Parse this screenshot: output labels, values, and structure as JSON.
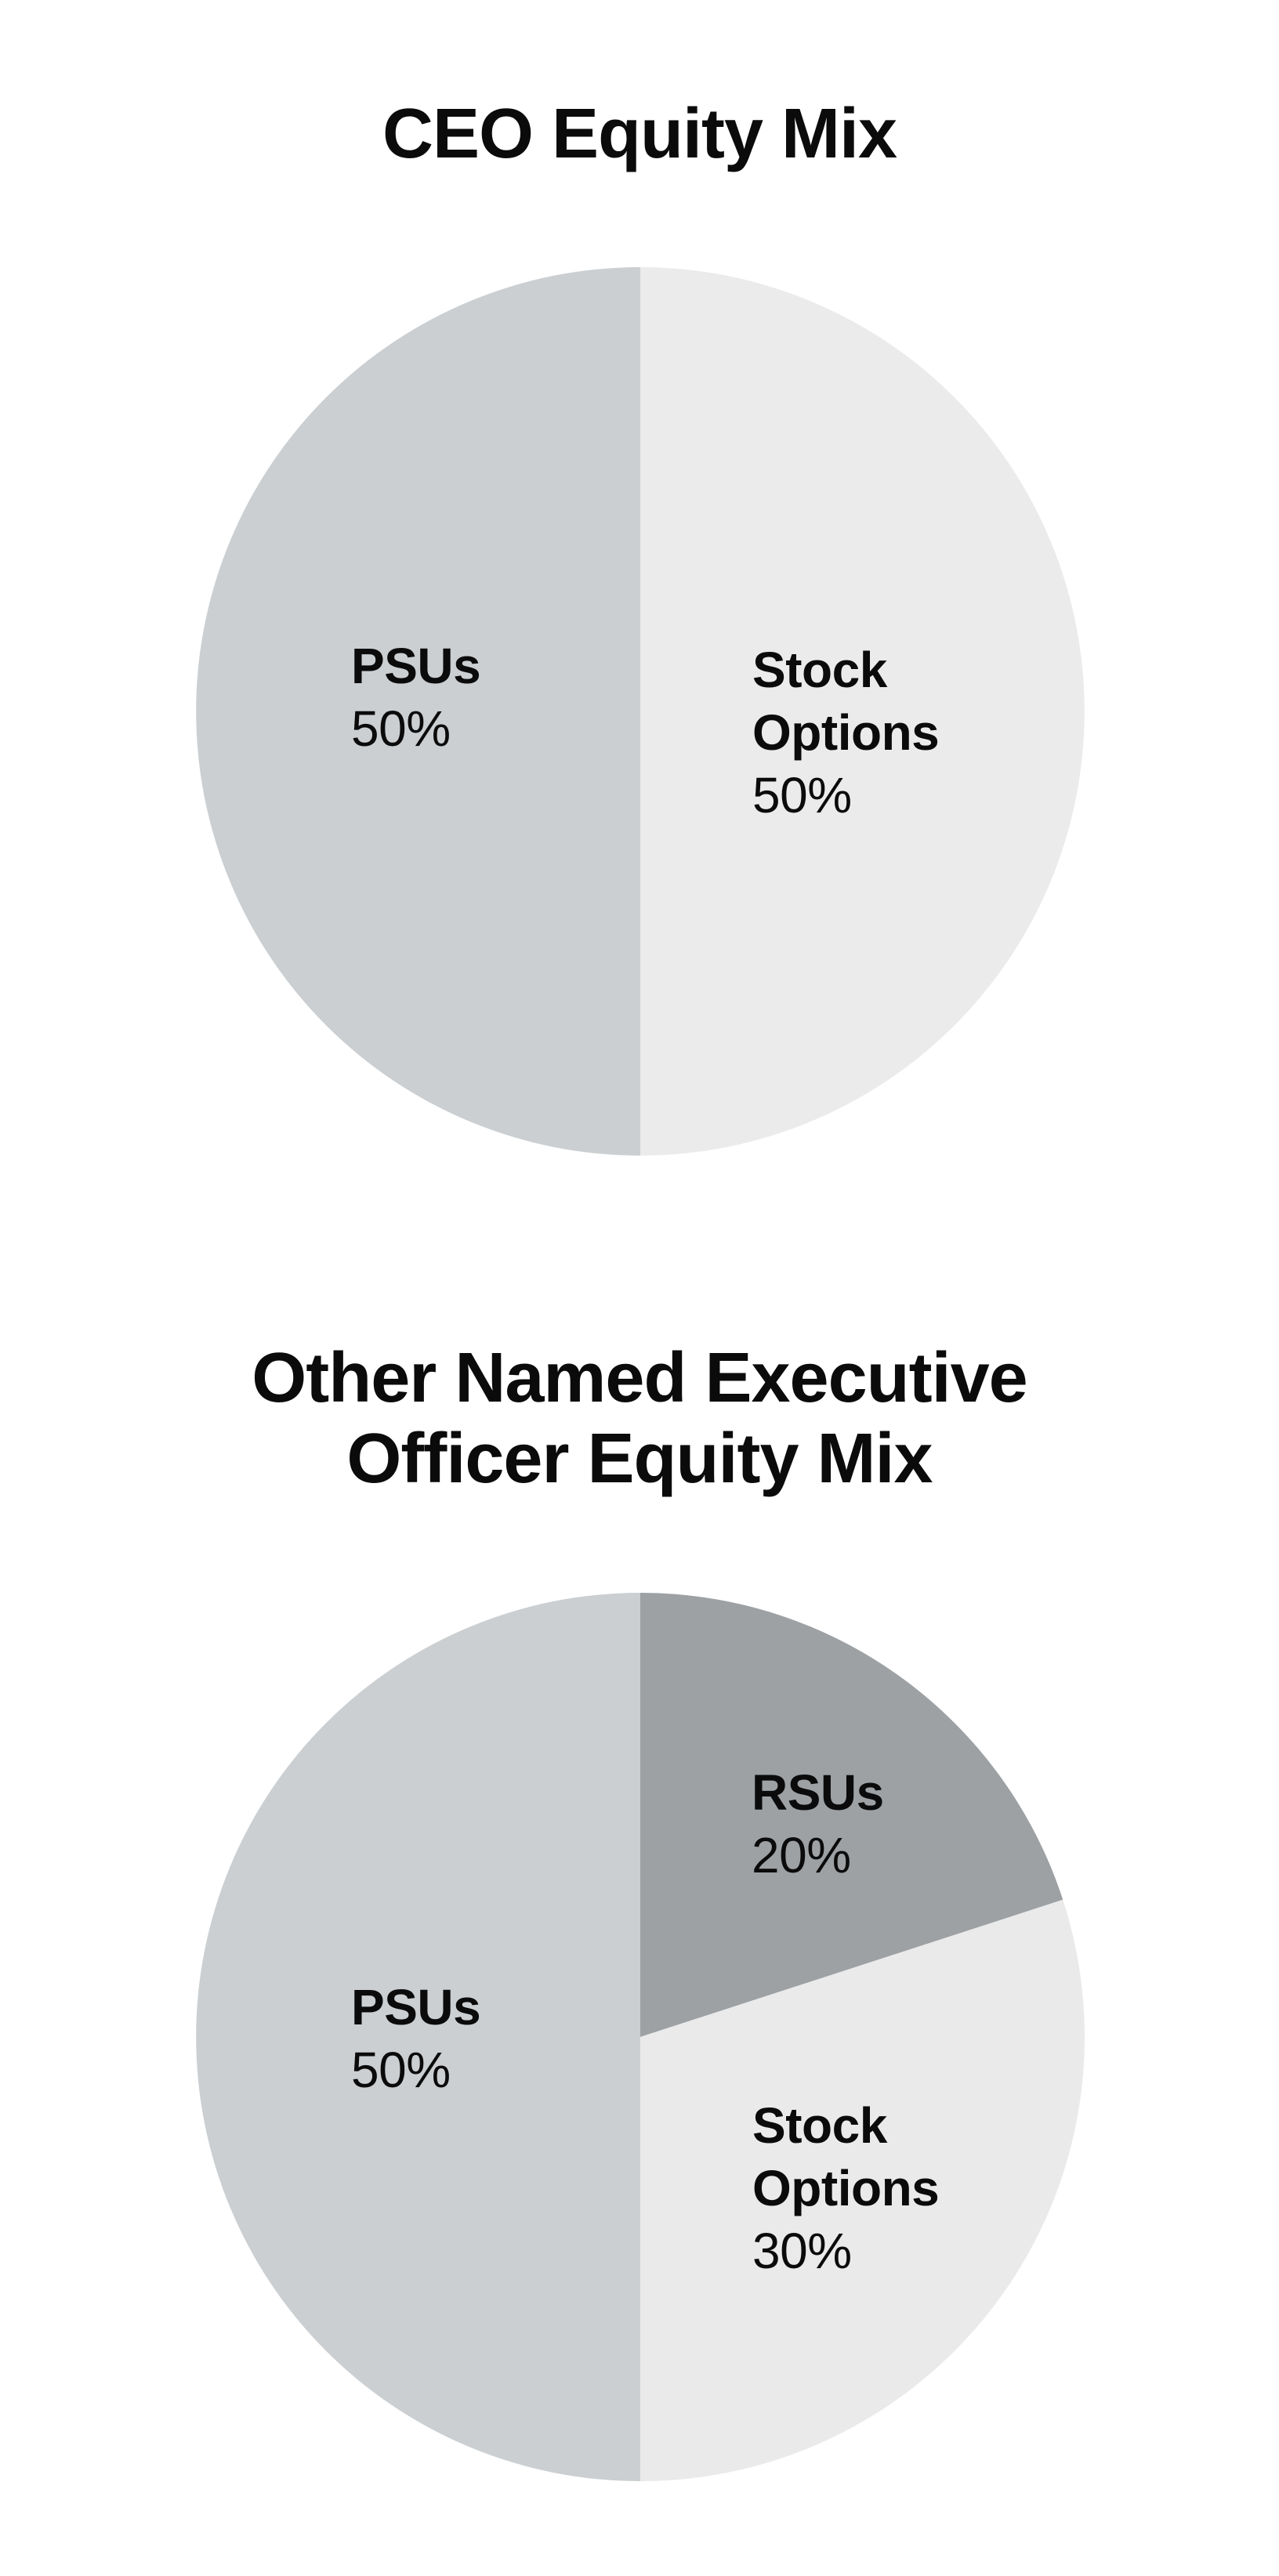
{
  "page": {
    "background_color": "#ffffff",
    "text_color": "#0b0b0c"
  },
  "chart_data": [
    {
      "type": "pie",
      "title": "CEO Equity Mix",
      "title_lines": [
        "CEO Equity Mix"
      ],
      "start_angle_deg": 0,
      "direction": "clockwise",
      "legend": "none",
      "labels_position": "inside",
      "slices": [
        {
          "label": "Stock Options",
          "label_lines": [
            "Stock",
            "Options"
          ],
          "value": 50,
          "pct_label": "50%",
          "color": "#ebebeb"
        },
        {
          "label": "PSUs",
          "label_lines": [
            "PSUs"
          ],
          "value": 50,
          "pct_label": "50%",
          "color": "#cbcfd1"
        }
      ]
    },
    {
      "type": "pie",
      "title": "Other Named Executive Officer Equity Mix",
      "title_lines": [
        "Other Named Executive",
        "Officer Equity Mix"
      ],
      "start_angle_deg": 0,
      "direction": "clockwise",
      "legend": "none",
      "labels_position": "inside",
      "slices": [
        {
          "label": "RSUs",
          "label_lines": [
            "RSUs"
          ],
          "value": 20,
          "pct_label": "20%",
          "color": "#9da1a4"
        },
        {
          "label": "Stock Options",
          "label_lines": [
            "Stock",
            "Options"
          ],
          "value": 30,
          "pct_label": "30%",
          "color": "#eaeaea"
        },
        {
          "label": "PSUs",
          "label_lines": [
            "PSUs"
          ],
          "value": 50,
          "pct_label": "50%",
          "color": "#cbcfd1"
        }
      ]
    }
  ]
}
